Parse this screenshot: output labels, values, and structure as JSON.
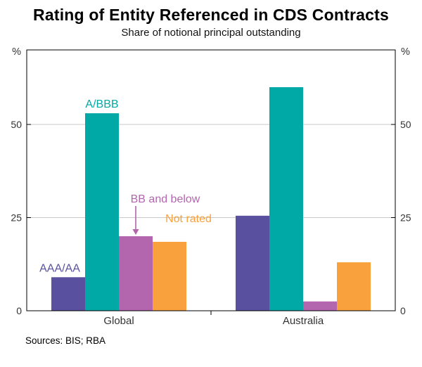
{
  "page": {
    "title": "Rating of Entity Referenced in CDS Contracts",
    "subtitle": "Share of notional principal outstanding",
    "sources": "Sources: BIS; RBA"
  },
  "chart_data": {
    "type": "bar",
    "title": "Rating of Entity Referenced in CDS Contracts",
    "subtitle": "Share of notional principal outstanding",
    "unit": "%",
    "categories": [
      "Global",
      "Australia"
    ],
    "series": [
      {
        "name": "AAA/AA",
        "color": "#5951a0",
        "values": [
          9,
          25.5
        ]
      },
      {
        "name": "A/BBB",
        "color": "#00a9a6",
        "values": [
          53,
          60
        ]
      },
      {
        "name": "BB and below",
        "color": "#b365ae",
        "values": [
          20,
          2.5
        ]
      },
      {
        "name": "Not rated",
        "color": "#f9a13c",
        "values": [
          18.5,
          13
        ]
      }
    ],
    "ylim": [
      0,
      70
    ],
    "yticks": [
      0,
      25,
      50
    ],
    "ylabel_left": "%",
    "ylabel_right": "%",
    "grid": true,
    "legend": "none - series labeled by in-chart annotations",
    "annotations": [
      {
        "text": "AAA/AA",
        "series": 0,
        "group": 0,
        "dy": -8,
        "tdx": -12,
        "arrow": false
      },
      {
        "text": "A/BBB",
        "series": 1,
        "group": 0,
        "dy": -8,
        "tdx": 0,
        "arrow": false
      },
      {
        "text": "BB and below",
        "series": 2,
        "group": 0,
        "dy": -48,
        "tdx": 42,
        "arrow": true
      },
      {
        "text": "Not rated",
        "series": 3,
        "group": 0,
        "dy": -28,
        "tdx": 27,
        "arrow": false
      }
    ],
    "sources": "Sources: BIS; RBA"
  }
}
